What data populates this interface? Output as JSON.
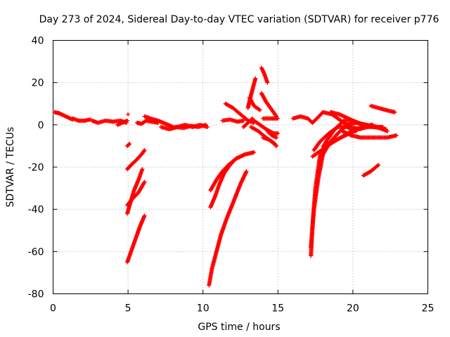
{
  "chart_data": {
    "type": "scatter",
    "title": "Day 273 of 2024, Sidereal Day-to-day VTEC variation (SDTVAR) for receiver p776",
    "xlabel": "GPS time / hours",
    "ylabel": "SDTVAR / TECUs",
    "xlim": [
      0,
      25
    ],
    "ylim": [
      -80,
      40
    ],
    "xticks": [
      "0",
      "5",
      "10",
      "15",
      "20",
      "25"
    ],
    "yticks": [
      "-80",
      "-60",
      "-40",
      "-20",
      "0",
      "20",
      "40"
    ],
    "grid": true,
    "marker": "plus",
    "color": "#ff0000",
    "series": [
      {
        "x": [
          0.1,
          0.4,
          0.7,
          1.0,
          1.3
        ],
        "y": [
          6,
          5.5,
          4.5,
          3.5,
          2.5
        ]
      },
      {
        "x": [
          1.3,
          1.7,
          2.1,
          2.5
        ],
        "y": [
          3,
          2,
          2,
          2.5
        ]
      },
      {
        "x": [
          2.6,
          3.0,
          3.5,
          4.0,
          4.5,
          4.9
        ],
        "y": [
          2,
          1,
          2,
          1.5,
          2,
          1
        ]
      },
      {
        "x": [
          4.3,
          4.6,
          4.95
        ],
        "y": [
          0,
          1,
          2
        ]
      },
      {
        "x": [
          5.0
        ],
        "y": [
          5
        ]
      },
      {
        "x": [
          5.6,
          5.9,
          6.2,
          6.6,
          7.0
        ],
        "y": [
          1,
          0.5,
          2,
          1.5,
          1
        ]
      },
      {
        "x": [
          6.1,
          6.5,
          7.0,
          7.5,
          8.0
        ],
        "y": [
          4,
          3,
          2,
          0.5,
          -1
        ]
      },
      {
        "x": [
          7.2,
          7.7,
          8.2,
          8.7,
          9.2,
          9.7,
          10.2
        ],
        "y": [
          -1,
          -2,
          -1,
          -1.5,
          -0.5,
          -1,
          0
        ]
      },
      {
        "x": [
          7.8,
          8.3,
          8.8,
          9.3,
          9.8,
          10.3
        ],
        "y": [
          -2,
          -1,
          0,
          -1,
          0,
          -1
        ]
      },
      {
        "x": [
          4.95,
          5.1
        ],
        "y": [
          -10,
          -9
        ]
      },
      {
        "x": [
          4.95,
          5.2,
          5.5,
          5.9,
          6.1
        ],
        "y": [
          -21,
          -19,
          -17,
          -14,
          -12
        ]
      },
      {
        "x": [
          4.95,
          5.15,
          5.4,
          5.7,
          5.95
        ],
        "y": [
          -42,
          -37,
          -31,
          -26,
          -21
        ]
      },
      {
        "x": [
          4.95,
          5.3,
          5.7,
          6.1
        ],
        "y": [
          -38,
          -35,
          -32,
          -27
        ]
      },
      {
        "x": [
          4.95,
          5.2,
          5.5,
          5.8,
          6.1
        ],
        "y": [
          -65,
          -60,
          -54,
          -48,
          -43
        ]
      },
      {
        "x": [
          10.5,
          10.9,
          11.3,
          11.7,
          12.2,
          12.8
        ],
        "y": [
          -31,
          -26,
          -22,
          -19,
          -16,
          -14
        ]
      },
      {
        "x": [
          10.5,
          10.8,
          11.1,
          11.4,
          11.8,
          12.2,
          12.8,
          13.4
        ],
        "y": [
          -39,
          -34,
          -28,
          -23,
          -19,
          -16,
          -14,
          -13
        ]
      },
      {
        "x": [
          10.4,
          10.6,
          10.9,
          11.2,
          11.6,
          12.0,
          12.5,
          12.9
        ],
        "y": [
          -76,
          -68,
          -60,
          -52,
          -44,
          -37,
          -28,
          -22
        ]
      },
      {
        "x": [
          11.3,
          11.8,
          12.3,
          12.7
        ],
        "y": [
          2,
          2.5,
          1.5,
          2
        ]
      },
      {
        "x": [
          11.5,
          12.0,
          12.5,
          13.0,
          13.4
        ],
        "y": [
          10,
          8,
          5,
          2,
          1
        ]
      },
      {
        "x": [
          13.0,
          13.2,
          13.5
        ],
        "y": [
          8,
          14,
          22
        ]
      },
      {
        "x": [
          13.1,
          13.4,
          13.8
        ],
        "y": [
          13,
          9,
          7
        ]
      },
      {
        "x": [
          12.7,
          13.0,
          13.3
        ],
        "y": [
          -1,
          1,
          3
        ]
      },
      {
        "x": [
          13.2,
          13.7,
          14.2,
          14.6,
          14.9
        ],
        "y": [
          -1,
          -3,
          -6,
          -8,
          -10
        ]
      },
      {
        "x": [
          13.9,
          14.1,
          14.3
        ],
        "y": [
          27,
          24,
          20
        ]
      },
      {
        "x": [
          13.9,
          14.2,
          14.6,
          14.9
        ],
        "y": [
          15,
          11,
          7,
          4
        ]
      },
      {
        "x": [
          13.4,
          13.8,
          14.2,
          14.7,
          15.0
        ],
        "y": [
          2,
          0,
          -2,
          -4,
          -4
        ]
      },
      {
        "x": [
          14.0,
          14.5,
          15.0
        ],
        "y": [
          3,
          3,
          3
        ]
      },
      {
        "x": [
          14.3,
          14.6,
          14.9
        ],
        "y": [
          -3,
          -5,
          -6
        ]
      },
      {
        "x": [
          14.0,
          14.4,
          14.8
        ],
        "y": [
          -6,
          -7,
          -9
        ]
      },
      {
        "x": [
          16.0,
          16.5,
          17.0,
          17.3
        ],
        "y": [
          3,
          4,
          3,
          1
        ]
      },
      {
        "x": [
          17.3,
          17.6,
          18.0,
          18.6,
          19.2,
          19.8,
          20.5
        ],
        "y": [
          1,
          3,
          6,
          5,
          2,
          -1,
          -2
        ]
      },
      {
        "x": [
          17.2,
          17.3,
          17.5,
          17.8,
          18.2,
          18.8,
          19.4,
          20.0,
          20.7,
          21.4,
          22.2
        ],
        "y": [
          -62,
          -48,
          -30,
          -15,
          -8,
          -2,
          2,
          2,
          0,
          -1,
          -2
        ]
      },
      {
        "x": [
          17.2,
          17.4,
          17.7,
          18.0,
          18.5,
          19.0,
          19.6,
          20.2,
          20.8
        ],
        "y": [
          -58,
          -40,
          -25,
          -14,
          -8,
          -4,
          0,
          1,
          0
        ]
      },
      {
        "x": [
          17.4,
          17.8,
          18.4,
          19.0,
          19.6,
          20.2
        ],
        "y": [
          -12,
          -8,
          -4,
          -1,
          -1,
          -3
        ]
      },
      {
        "x": [
          17.3,
          17.9,
          18.5,
          19.2,
          19.9,
          20.6,
          21.3
        ],
        "y": [
          -15,
          -12,
          -9,
          -6,
          -3,
          -1,
          0
        ]
      },
      {
        "x": [
          18.0,
          18.6,
          19.2,
          19.8,
          20.4,
          21.0,
          21.6,
          22.3
        ],
        "y": [
          -10,
          -8,
          -6,
          -4,
          -2,
          -1,
          -1,
          -3
        ]
      },
      {
        "x": [
          18.5,
          19.1,
          19.7,
          20.3,
          20.9,
          21.5
        ],
        "y": [
          6,
          5,
          3,
          1,
          0,
          -1
        ]
      },
      {
        "x": [
          19.3,
          19.9,
          20.5,
          21.1,
          21.7,
          22.3,
          22.9
        ],
        "y": [
          -3,
          -5,
          -6,
          -6,
          -6,
          -6,
          -5
        ]
      },
      {
        "x": [
          21.2,
          21.7,
          22.2,
          22.8
        ],
        "y": [
          9,
          8,
          7,
          6
        ]
      },
      {
        "x": [
          20.7,
          21.2,
          21.7
        ],
        "y": [
          -24,
          -22,
          -19
        ]
      },
      {
        "x": [
          21.2,
          21.6,
          22.0
        ],
        "y": [
          0,
          -1,
          -1
        ]
      }
    ]
  }
}
